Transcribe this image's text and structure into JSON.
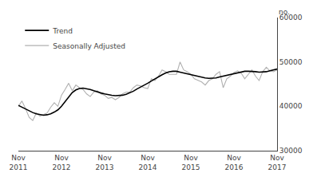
{
  "chart_data": {
    "type": "line",
    "y_label": "no.",
    "categories": [
      "Nov\n2011",
      null,
      null,
      null,
      null,
      null,
      null,
      null,
      null,
      null,
      null,
      null,
      "Nov\n2012",
      null,
      null,
      null,
      null,
      null,
      null,
      null,
      null,
      null,
      null,
      null,
      "Nov\n2013",
      null,
      null,
      null,
      null,
      null,
      null,
      null,
      null,
      null,
      null,
      null,
      "Nov\n2014",
      null,
      null,
      null,
      null,
      null,
      null,
      null,
      null,
      null,
      null,
      null,
      "Nov\n2015",
      null,
      null,
      null,
      null,
      null,
      null,
      null,
      null,
      null,
      null,
      null,
      "Nov\n2016",
      null,
      null,
      null,
      null,
      null,
      null,
      null,
      null,
      null,
      null,
      null,
      "Nov\n2017"
    ],
    "series": [
      {
        "name": "Seasonally Adjusted",
        "color": "#b0b0b0",
        "values": [
          40000,
          41200,
          39500,
          37500,
          36800,
          38500,
          37800,
          38200,
          38500,
          39800,
          40800,
          40000,
          42500,
          43800,
          45200,
          43500,
          44800,
          44200,
          43800,
          42800,
          42200,
          43200,
          43500,
          42800,
          42500,
          41800,
          42000,
          41500,
          42000,
          42800,
          43200,
          43200,
          44200,
          44800,
          44600,
          44200,
          44000,
          46200,
          45800,
          46800,
          48200,
          47800,
          47200,
          47200,
          47200,
          50000,
          48200,
          47800,
          47200,
          46200,
          45800,
          45500,
          44800,
          45800,
          46200,
          47200,
          47800,
          44200,
          46200,
          46800,
          47600,
          48000,
          47500,
          46200,
          47200,
          48200,
          46800,
          45800,
          47800,
          48800,
          48000,
          47800,
          48200
        ]
      },
      {
        "name": "Trend",
        "color": "#000000",
        "values": [
          40200,
          39800,
          39400,
          38900,
          38600,
          38300,
          38100,
          38000,
          38100,
          38300,
          38700,
          39200,
          40000,
          41000,
          42200,
          43100,
          43700,
          44000,
          44100,
          44000,
          43800,
          43500,
          43200,
          43000,
          42800,
          42600,
          42500,
          42400,
          42400,
          42500,
          42700,
          43000,
          43400,
          43900,
          44300,
          44700,
          45200,
          45700,
          46200,
          46700,
          47100,
          47500,
          47800,
          47900,
          47900,
          47700,
          47500,
          47300,
          47100,
          46900,
          46800,
          46600,
          46400,
          46300,
          46300,
          46400,
          46600,
          46800,
          47000,
          47200,
          47400,
          47600,
          47800,
          47900,
          47900,
          47900,
          47800,
          47700,
          47700,
          47800,
          48000,
          48200,
          48400
        ]
      }
    ],
    "ylim": [
      30000,
      60000
    ],
    "yticks": [
      30000,
      40000,
      50000,
      60000
    ],
    "grid": false,
    "legend": "upper left"
  }
}
